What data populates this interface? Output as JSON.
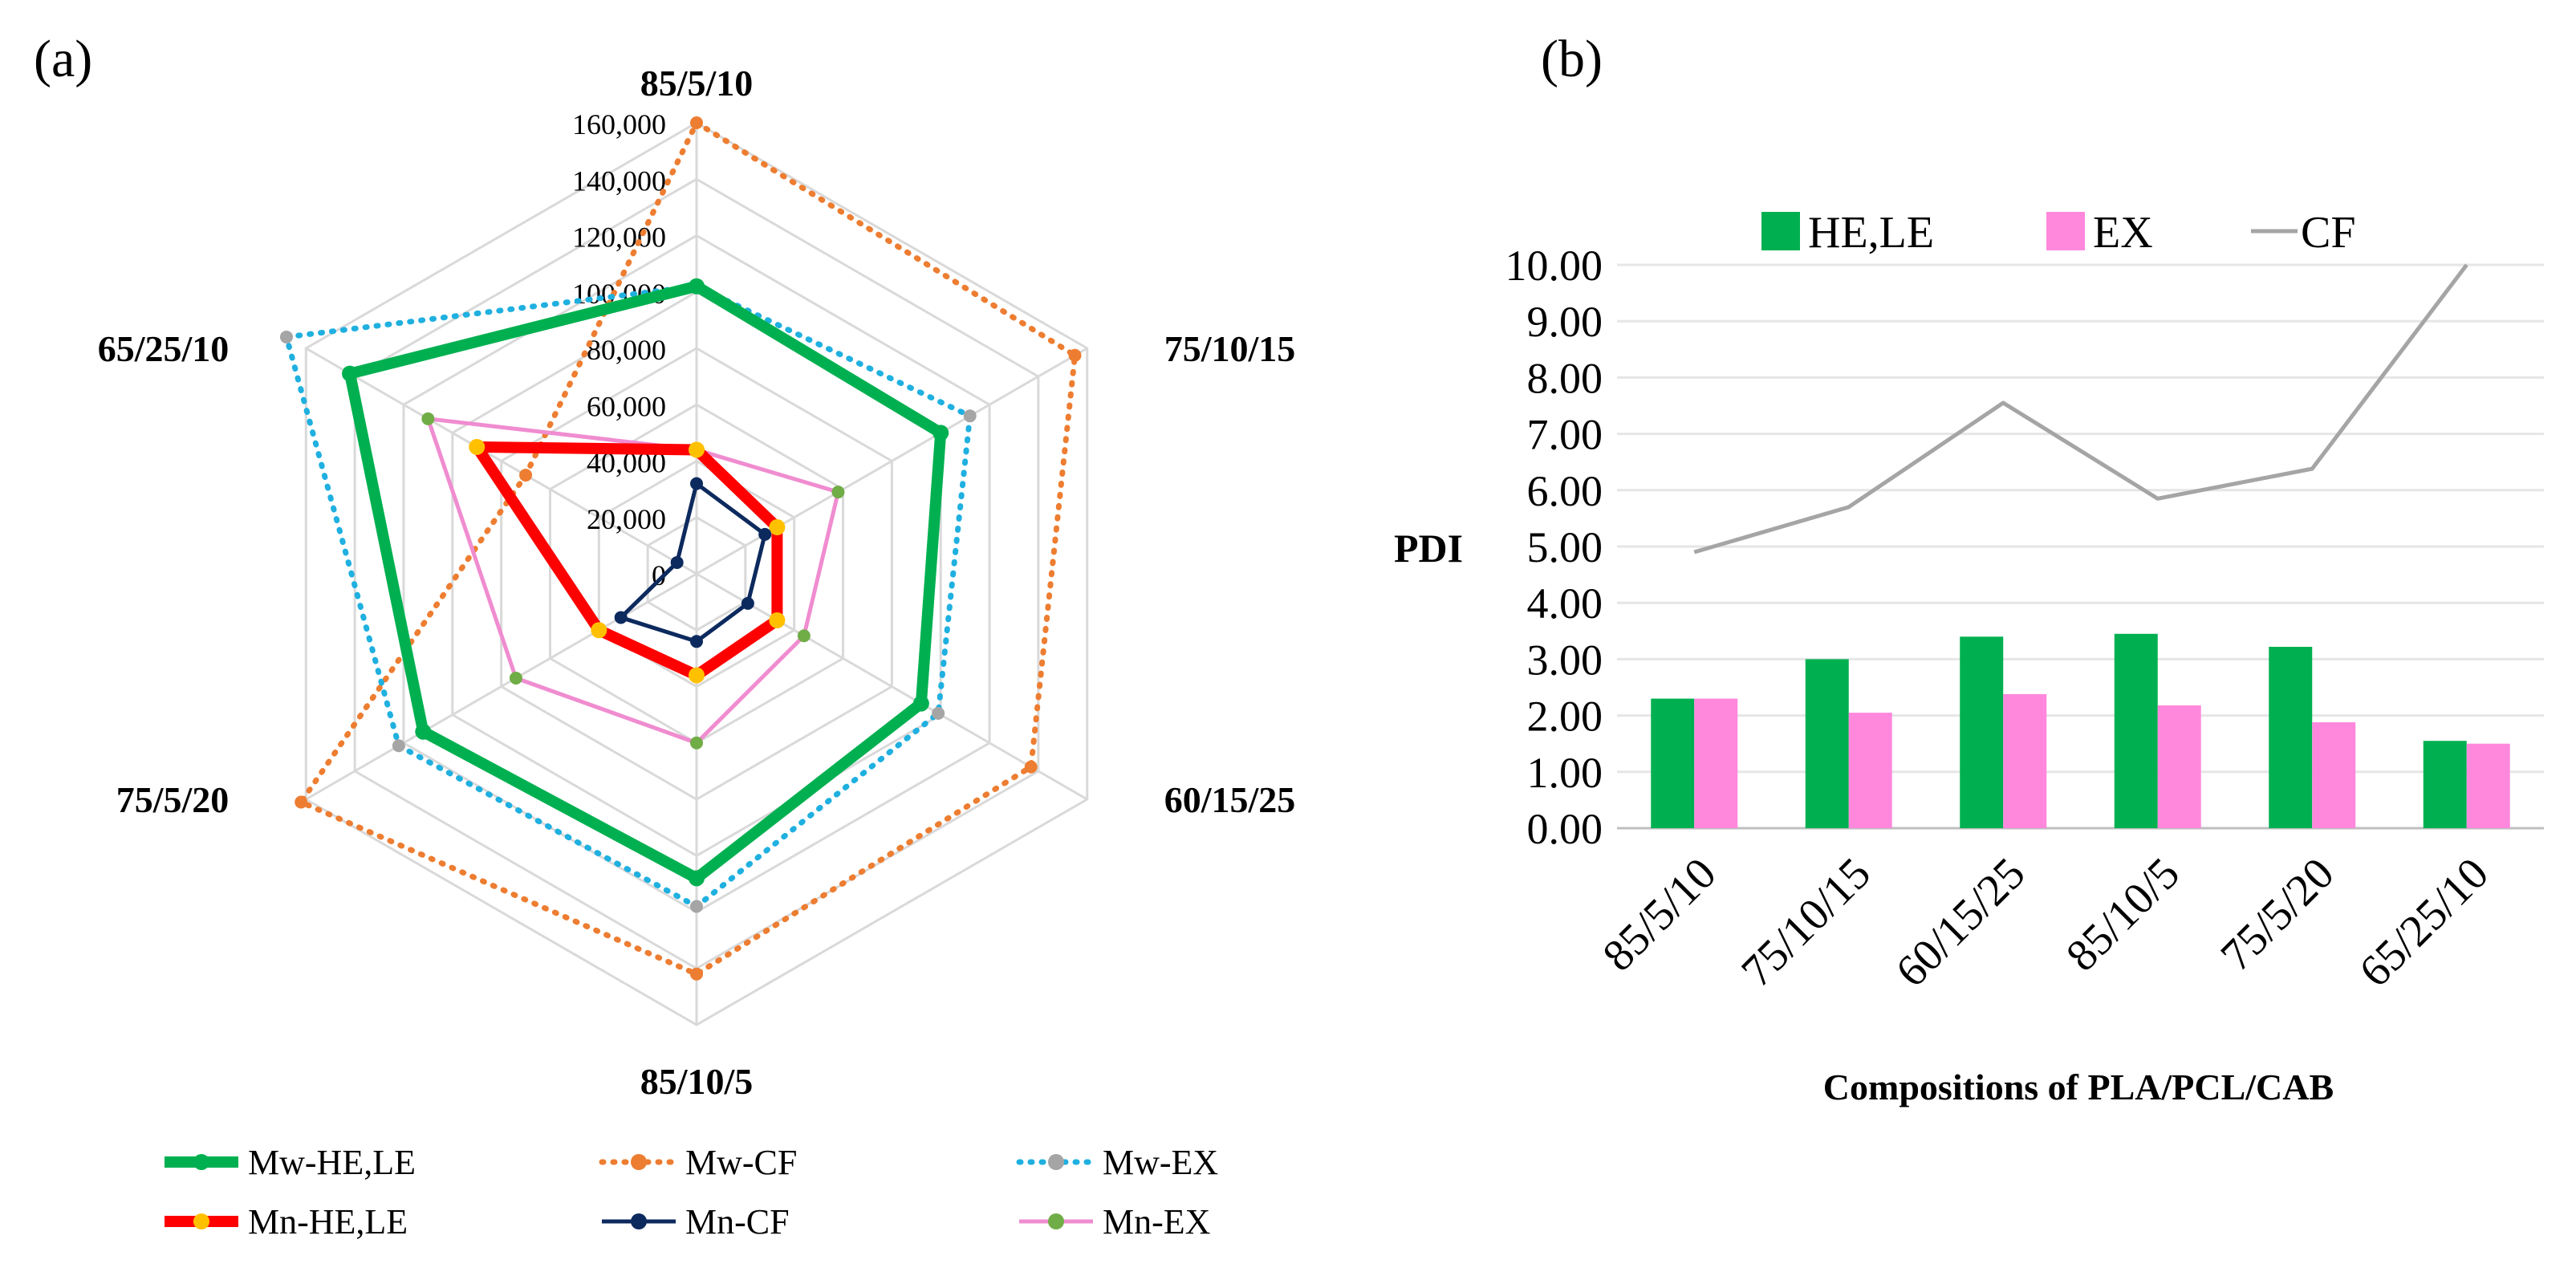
{
  "panel_a": {
    "label": "(a)"
  },
  "panel_b": {
    "label": "(b)"
  },
  "chart_data": [
    {
      "type": "radar",
      "panel": "(a)",
      "axes": [
        "85/5/10",
        "75/10/15",
        "60/15/25",
        "85/10/5",
        "75/5/20",
        "65/25/10"
      ],
      "rmax": 160000,
      "rticks": [
        "0",
        "20,000",
        "40,000",
        "60,000",
        "80,000",
        "100,000",
        "120,000",
        "140,000",
        "160,000"
      ],
      "series": [
        {
          "name": "Mw-HE,LE",
          "color": "#00b050",
          "style": "solid-thick",
          "marker": "#00b050",
          "values": [
            102000,
            100000,
            92000,
            108000,
            112000,
            142000
          ]
        },
        {
          "name": "Mw-CF",
          "color": "#ed7d31",
          "style": "dotted",
          "marker": "#ed7d31",
          "values": [
            160000,
            155000,
            137000,
            142000,
            162000,
            70000
          ]
        },
        {
          "name": "Mw-EX",
          "color": "#1fb0e0",
          "style": "dotted",
          "marker": "#a5a5a5",
          "values": [
            102000,
            112000,
            99000,
            118000,
            122000,
            168000
          ]
        },
        {
          "name": "Mn-HE,LE",
          "color": "#ff0000",
          "style": "solid-thick",
          "marker": "#ffc000",
          "values": [
            44000,
            33000,
            33000,
            36000,
            40000,
            90000
          ]
        },
        {
          "name": "Mn-CF",
          "color": "#0d2a5e",
          "style": "solid",
          "marker": "#0d2a5e",
          "values": [
            32000,
            28000,
            21000,
            24000,
            31000,
            8000
          ]
        },
        {
          "name": "Mn-EX",
          "color": "#f08cd0",
          "style": "solid",
          "marker": "#70ad47",
          "values": [
            44000,
            58000,
            44000,
            60000,
            74000,
            110000
          ]
        }
      ]
    },
    {
      "type": "bar+line",
      "panel": "(b)",
      "categories": [
        "85/5/10",
        "75/10/15",
        "60/15/25",
        "85/10/5",
        "75/5/20",
        "65/25/10"
      ],
      "series": [
        {
          "name": "HE,LE",
          "type": "bar",
          "color": "#00b050",
          "values": [
            2.3,
            3.0,
            3.4,
            3.45,
            3.22,
            1.55
          ]
        },
        {
          "name": "EX",
          "type": "bar",
          "color": "#ff88dd",
          "values": [
            2.3,
            2.05,
            2.38,
            2.18,
            1.88,
            1.5
          ]
        },
        {
          "name": "CF",
          "type": "line",
          "color": "#a5a5a5",
          "values": [
            4.9,
            5.7,
            7.55,
            5.85,
            6.38,
            10.0
          ]
        }
      ],
      "ylabel": "PDI",
      "xlabel": "Compositions of PLA/PCL/CAB",
      "ylim": [
        0,
        10
      ],
      "yticks": [
        "0.00",
        "1.00",
        "2.00",
        "3.00",
        "4.00",
        "5.00",
        "6.00",
        "7.00",
        "8.00",
        "9.00",
        "10.00"
      ]
    }
  ]
}
